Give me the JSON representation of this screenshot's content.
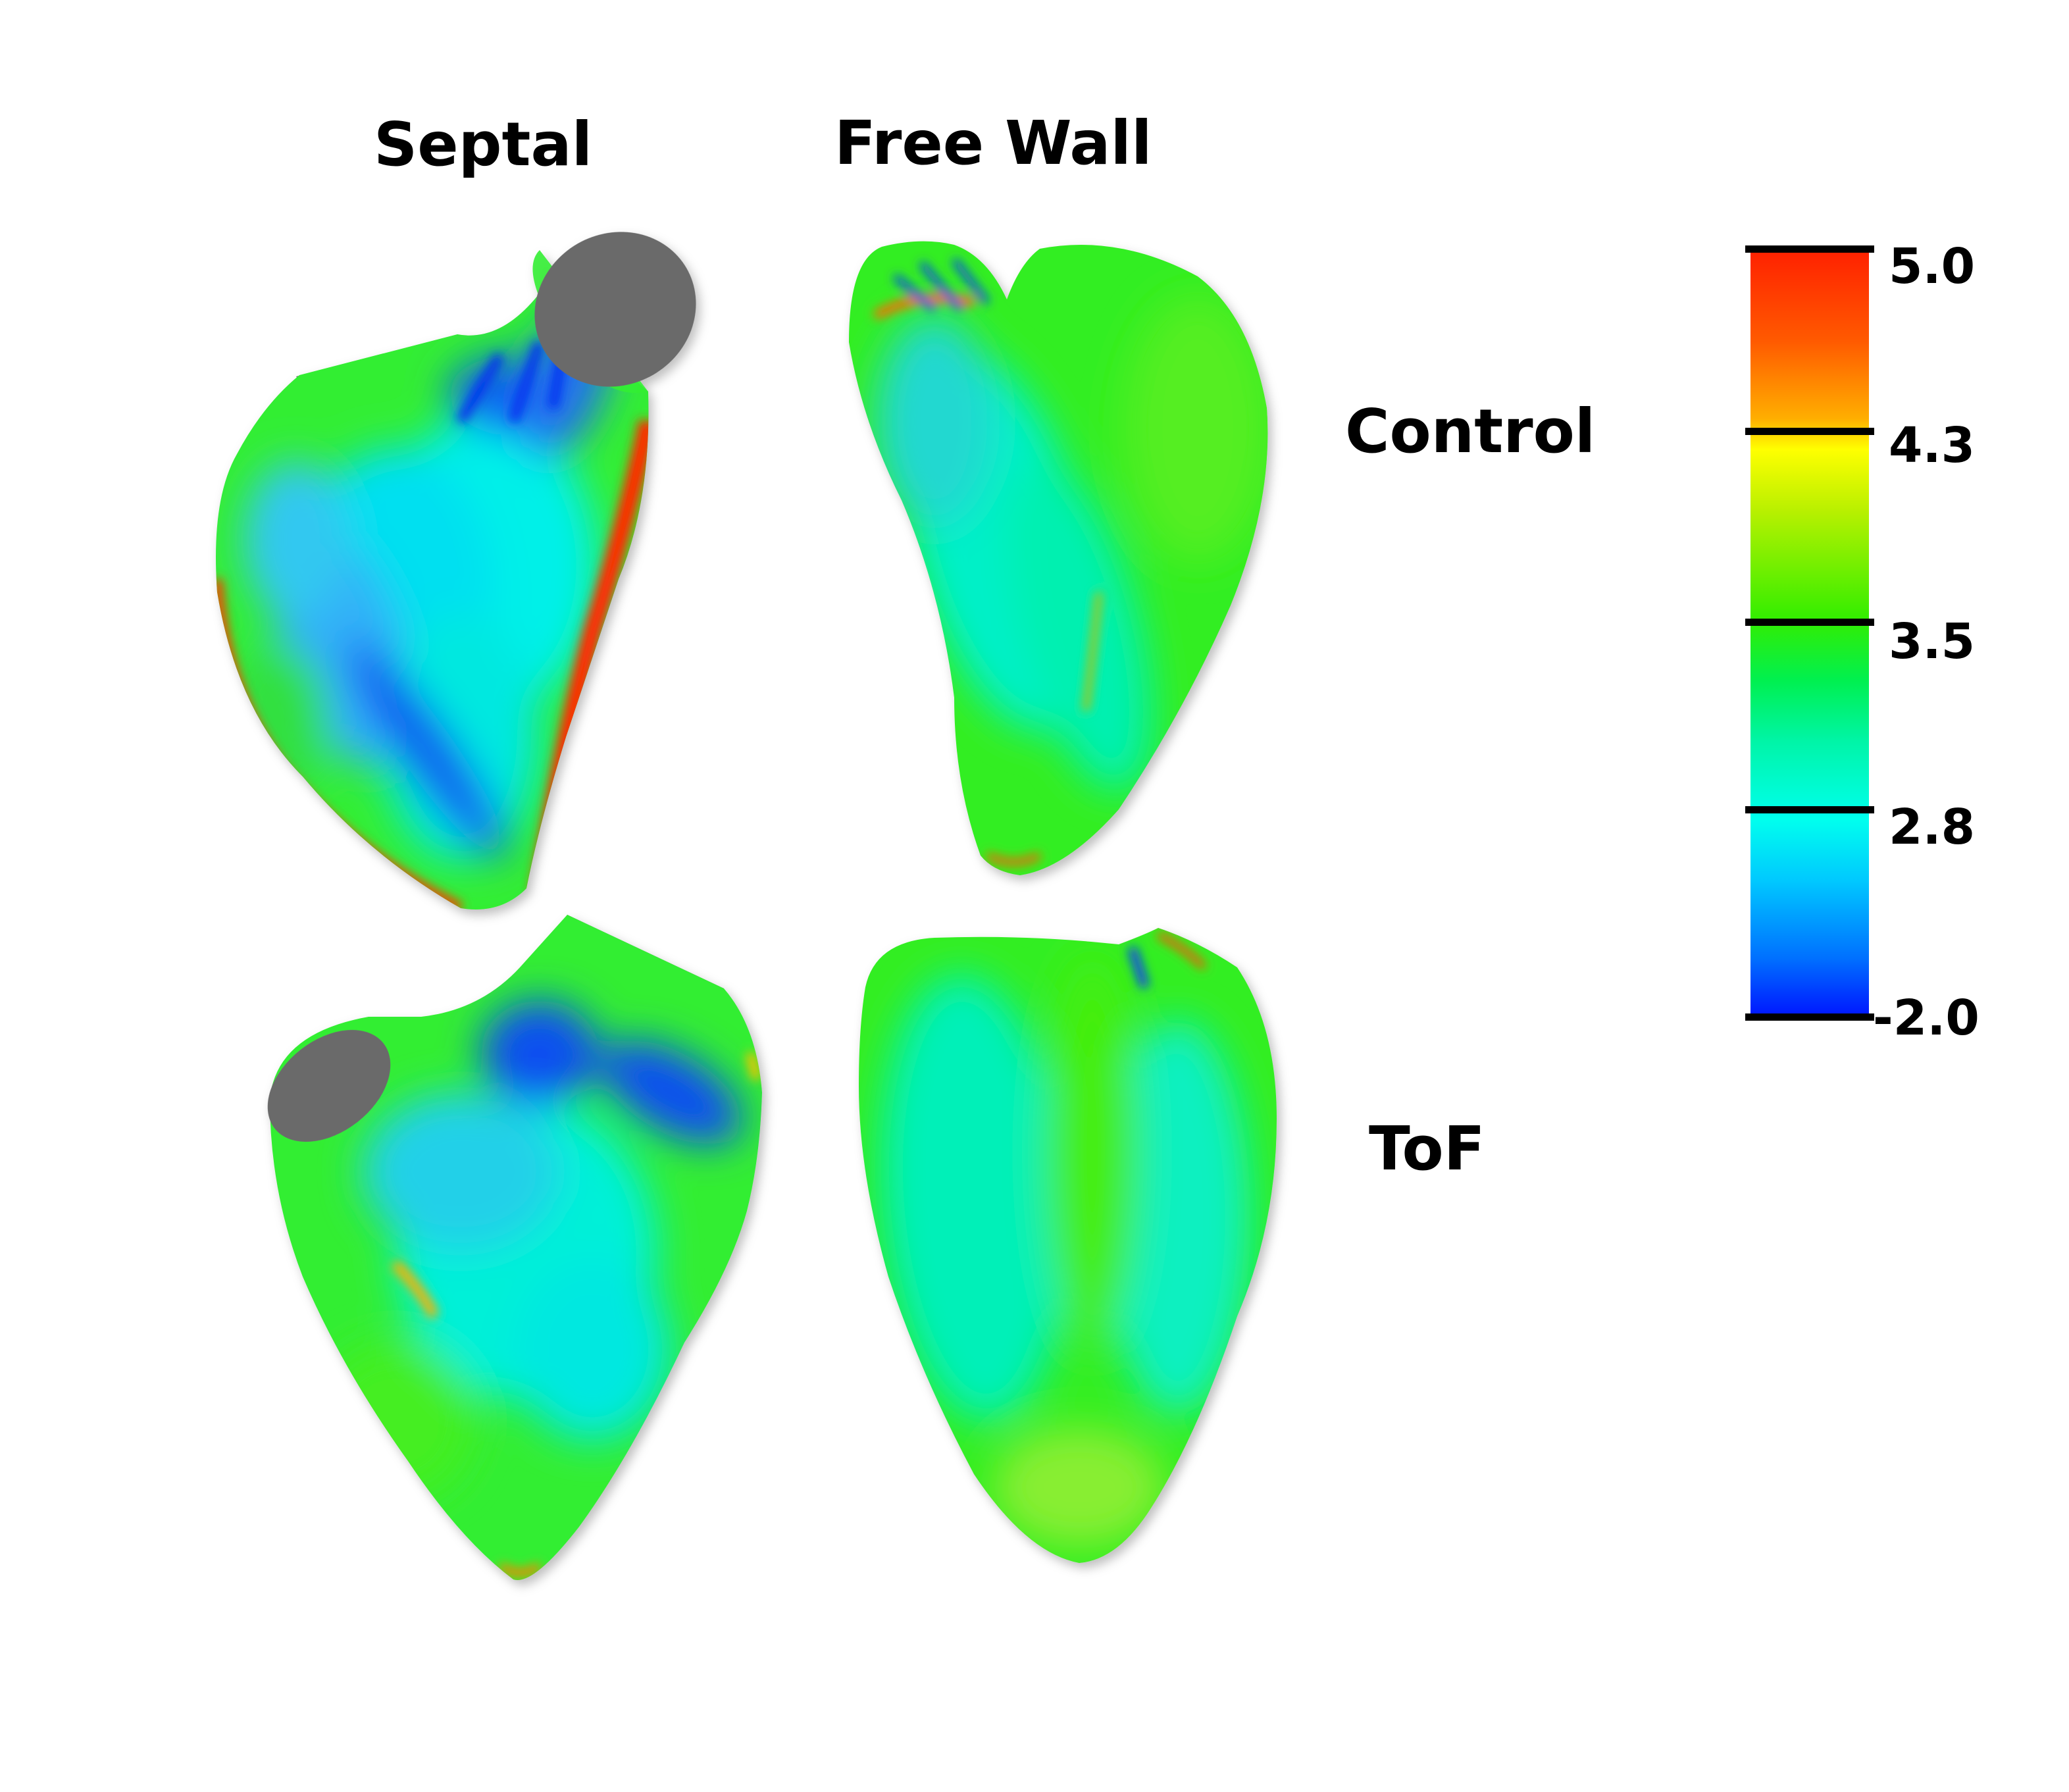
{
  "columns": {
    "septal": "Septal",
    "free_wall": "Free Wall"
  },
  "rows": {
    "control": "Control",
    "tof": "ToF"
  },
  "colorbar": {
    "ticks": [
      "5.0",
      "4.3",
      "3.5",
      "2.8",
      "-2.0"
    ],
    "colors": {
      "max": "#ff2000",
      "high": "#ffff00",
      "mid": "#33ee00",
      "low": "#00ffee",
      "min": "#0010ff"
    }
  },
  "colors": {
    "valve_gray": "#6b6b6b"
  }
}
